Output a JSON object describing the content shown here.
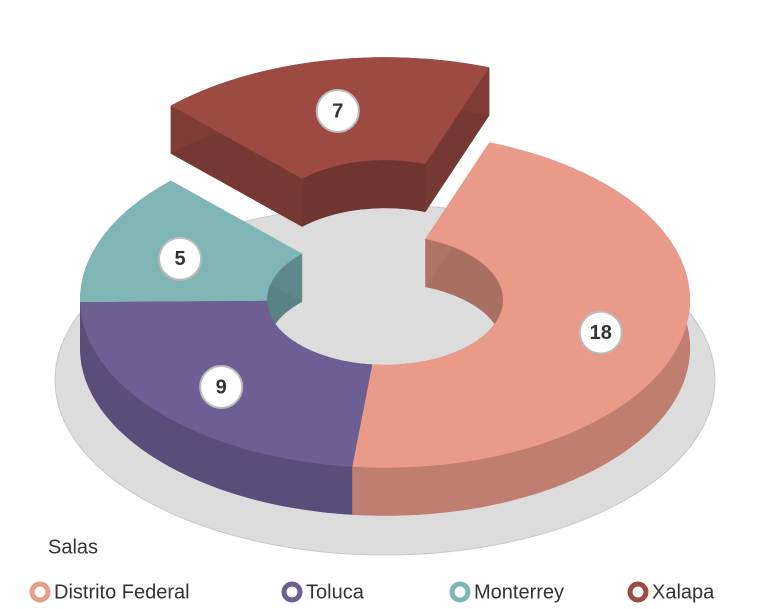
{
  "chart_data": {
    "type": "pie",
    "legend_title": "Salas",
    "categories": [
      "Distrito Federal",
      "Toluca",
      "Monterrey",
      "Xalapa"
    ],
    "values": [
      18,
      9,
      5,
      7
    ],
    "colors": [
      "#e99a88",
      "#6d5e93",
      "#7fb5b5",
      "#9c4a42"
    ]
  }
}
